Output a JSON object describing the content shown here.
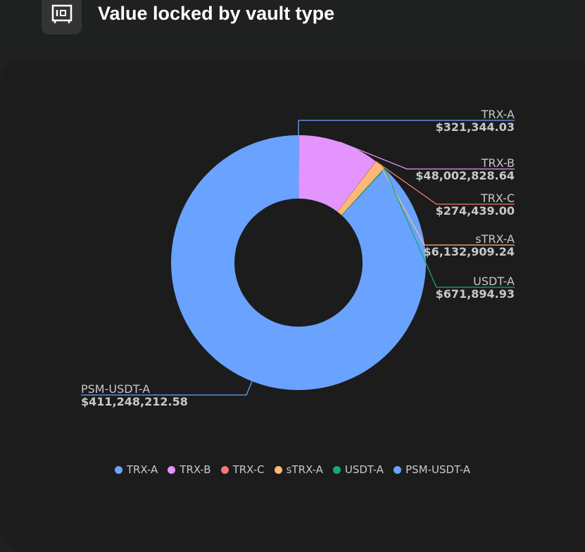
{
  "header": {
    "title": "Value locked by vault type",
    "icon": "vault-safe-icon"
  },
  "chart_data": {
    "type": "pie",
    "donut": true,
    "title": "Value locked by vault type",
    "legend_position": "bottom",
    "categories": [
      "TRX-A",
      "TRX-B",
      "TRX-C",
      "sTRX-A",
      "USDT-A",
      "PSM-USDT-A"
    ],
    "values": [
      321344.03,
      48002828.64,
      274439.0,
      6132909.24,
      671894.93,
      411248212.58
    ],
    "value_labels": [
      "$321,344.03",
      "$48,002,828.64",
      "$274,439.00",
      "$6,132,909.24",
      "$671,894.93",
      "$411,248,212.58"
    ],
    "colors": [
      "#6aa2ff",
      "#e395fd",
      "#f07a7a",
      "#ffb877",
      "#18a874",
      "#6aa2ff"
    ]
  }
}
